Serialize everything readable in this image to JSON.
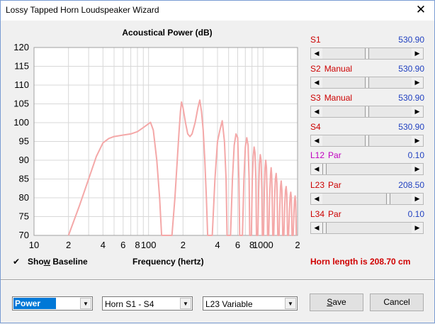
{
  "window": {
    "title": "Lossy Tapped Horn Loudspeaker Wizard",
    "close_glyph": "✕"
  },
  "chart_data": {
    "type": "line",
    "title": "Acoustical Power (dB)",
    "xlabel": "Frequency (hertz)",
    "x_scale": "log",
    "xlim": [
      10,
      2000
    ],
    "ylim": [
      70,
      120
    ],
    "y_ticks": [
      70,
      75,
      80,
      85,
      90,
      95,
      100,
      105,
      110,
      115,
      120
    ],
    "x_tick_labels": [
      {
        "value": 10,
        "label": "10"
      },
      {
        "value": 20,
        "label": "2"
      },
      {
        "value": 40,
        "label": "4"
      },
      {
        "value": 60,
        "label": "6"
      },
      {
        "value": 80,
        "label": "8"
      },
      {
        "value": 100,
        "label": "100"
      },
      {
        "value": 200,
        "label": "2"
      },
      {
        "value": 400,
        "label": "4"
      },
      {
        "value": 600,
        "label": "6"
      },
      {
        "value": 800,
        "label": "8"
      },
      {
        "value": 1000,
        "label": "1000"
      },
      {
        "value": 2000,
        "label": "2"
      }
    ],
    "grid": true,
    "line_color": "#f4a8a8",
    "series": [
      {
        "values": [
          [
            20,
            70
          ],
          [
            25,
            78
          ],
          [
            30,
            85
          ],
          [
            35,
            91
          ],
          [
            40,
            94.6
          ],
          [
            45,
            95.8
          ],
          [
            50,
            96.3
          ],
          [
            60,
            96.7
          ],
          [
            70,
            97
          ],
          [
            80,
            97.6
          ],
          [
            90,
            98.7
          ],
          [
            100,
            99.7
          ],
          [
            104,
            100.1
          ],
          [
            110,
            98
          ],
          [
            118,
            90
          ],
          [
            125,
            80
          ],
          [
            130,
            70
          ],
          [
            160,
            70
          ],
          [
            170,
            80
          ],
          [
            178,
            90
          ],
          [
            184,
            97
          ],
          [
            190,
            103
          ],
          [
            194,
            105.5
          ],
          [
            200,
            104
          ],
          [
            210,
            100
          ],
          [
            220,
            97
          ],
          [
            230,
            96.3
          ],
          [
            240,
            97
          ],
          [
            255,
            100
          ],
          [
            270,
            104
          ],
          [
            280,
            106
          ],
          [
            290,
            103
          ],
          [
            300,
            98
          ],
          [
            310,
            90
          ],
          [
            320,
            80
          ],
          [
            328,
            70
          ],
          [
            360,
            70
          ],
          [
            380,
            85
          ],
          [
            400,
            95
          ],
          [
            420,
            98
          ],
          [
            440,
            100.5
          ],
          [
            460,
            95
          ],
          [
            475,
            85
          ],
          [
            485,
            70
          ],
          [
            520,
            70
          ],
          [
            540,
            85
          ],
          [
            560,
            94
          ],
          [
            580,
            97
          ],
          [
            600,
            96
          ],
          [
            615,
            85
          ],
          [
            625,
            70
          ],
          [
            660,
            70
          ],
          [
            680,
            85
          ],
          [
            700,
            93.5
          ],
          [
            720,
            96
          ],
          [
            740,
            94
          ],
          [
            755,
            85
          ],
          [
            765,
            70
          ],
          [
            790,
            70
          ],
          [
            805,
            85
          ],
          [
            820,
            91
          ],
          [
            835,
            93.5
          ],
          [
            850,
            92
          ],
          [
            865,
            85
          ],
          [
            875,
            70
          ],
          [
            900,
            70
          ],
          [
            915,
            82
          ],
          [
            930,
            89
          ],
          [
            945,
            91.5
          ],
          [
            960,
            90
          ],
          [
            975,
            82
          ],
          [
            985,
            70
          ],
          [
            1010,
            70
          ],
          [
            1025,
            82
          ],
          [
            1040,
            88
          ],
          [
            1055,
            90
          ],
          [
            1070,
            88
          ],
          [
            1085,
            80
          ],
          [
            1095,
            70
          ],
          [
            1120,
            70
          ],
          [
            1140,
            80
          ],
          [
            1160,
            86
          ],
          [
            1175,
            88
          ],
          [
            1190,
            86
          ],
          [
            1205,
            78
          ],
          [
            1215,
            70
          ],
          [
            1240,
            70
          ],
          [
            1260,
            80
          ],
          [
            1280,
            85
          ],
          [
            1300,
            86.5
          ],
          [
            1320,
            84
          ],
          [
            1335,
            76
          ],
          [
            1345,
            70
          ],
          [
            1380,
            70
          ],
          [
            1400,
            78
          ],
          [
            1420,
            83
          ],
          [
            1440,
            84.5
          ],
          [
            1460,
            82
          ],
          [
            1475,
            75
          ],
          [
            1485,
            70
          ],
          [
            1520,
            70
          ],
          [
            1545,
            78
          ],
          [
            1570,
            82
          ],
          [
            1590,
            83
          ],
          [
            1610,
            81
          ],
          [
            1625,
            75
          ],
          [
            1635,
            70
          ],
          [
            1670,
            70
          ],
          [
            1700,
            77
          ],
          [
            1725,
            80.5
          ],
          [
            1745,
            81.5
          ],
          [
            1765,
            80
          ],
          [
            1780,
            75
          ],
          [
            1790,
            70
          ],
          [
            1830,
            70
          ],
          [
            1860,
            76
          ],
          [
            1885,
            79.5
          ],
          [
            1905,
            80.5
          ],
          [
            1925,
            79
          ],
          [
            1940,
            74
          ],
          [
            1950,
            70
          ]
        ]
      }
    ]
  },
  "params": [
    {
      "name": "S1",
      "type": "",
      "value": "530.90",
      "thumb": 0.5,
      "color": "red"
    },
    {
      "name": "S2",
      "type": "Manual",
      "value": "530.90",
      "thumb": 0.5,
      "color": "red"
    },
    {
      "name": "S3",
      "type": "Manual",
      "value": "530.90",
      "thumb": 0.5,
      "color": "red"
    },
    {
      "name": "S4",
      "type": "",
      "value": "530.90",
      "thumb": 0.5,
      "color": "red"
    },
    {
      "name": "L12",
      "type": "Par",
      "value": "0.10",
      "thumb": 0.0,
      "color": "violet"
    },
    {
      "name": "L23",
      "type": "Par",
      "value": "208.50",
      "thumb": 0.75,
      "color": "red"
    },
    {
      "name": "L34",
      "type": "Par",
      "value": "0.10",
      "thumb": 0.0,
      "color": "red"
    }
  ],
  "baseline": {
    "checked_glyph": "✔",
    "label_pre": "Sho",
    "label_accel": "w",
    "label_post": " Baseline"
  },
  "horn_length": "Horn length is 208.70 cm",
  "combos": [
    {
      "value": "Power"
    },
    {
      "value": "Horn S1 - S4"
    },
    {
      "value": "L23 Variable"
    }
  ],
  "buttons": {
    "save_accel": "S",
    "save_rest": "ave",
    "cancel": "Cancel"
  }
}
